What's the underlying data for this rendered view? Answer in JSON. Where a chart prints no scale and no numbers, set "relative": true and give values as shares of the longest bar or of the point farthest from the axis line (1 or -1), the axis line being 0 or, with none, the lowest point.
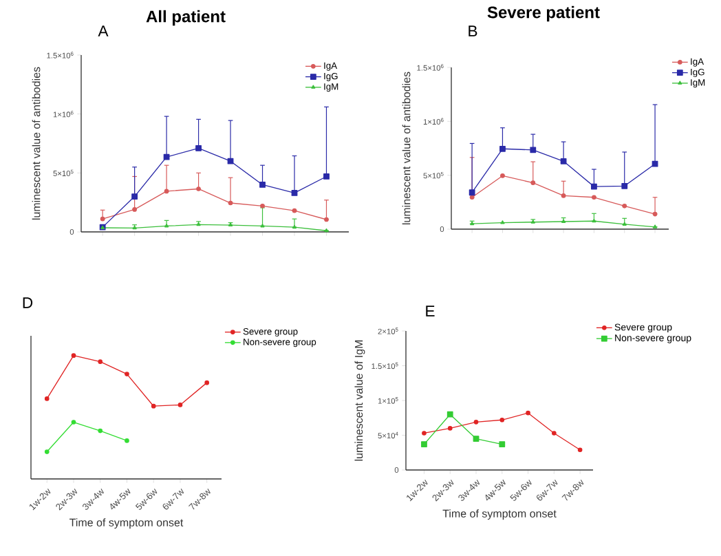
{
  "chart_data": [
    {
      "type": "line",
      "title": "All patient",
      "annotations": [
        "A"
      ],
      "ylabel": "luminescent value of antibodies",
      "categories": [
        null,
        null,
        null,
        null,
        null,
        null,
        null,
        null
      ],
      "ylim": [
        0,
        1500000
      ],
      "yticks": [
        0,
        {
          "value": 500000,
          "label": "5×10$^{5}$"
        },
        {
          "value": 1000000,
          "label": "1×10$^{6}$"
        },
        {
          "value": 1500000,
          "label": "1.5×10$^{6}$"
        }
      ],
      "legend": "top right",
      "series": [
        {
          "name": "IgA",
          "color": "#d75a5a",
          "marker": "circle",
          "values": [
            110000,
            190000,
            345000,
            365000,
            245000,
            220000,
            180000,
            105000
          ],
          "errors": [
            [
              110000,
              185000
            ],
            [
              190000,
              470000
            ],
            [
              345000,
              565000
            ],
            [
              365000,
              500000
            ],
            [
              245000,
              460000
            ],
            null,
            null,
            [
              105000,
              270000
            ]
          ]
        },
        {
          "name": "IgG",
          "color": "#2a2aa8",
          "marker": "square",
          "values": [
            40000,
            300000,
            635000,
            710000,
            600000,
            400000,
            330000,
            470000
          ],
          "errors": [
            null,
            [
              300000,
              550000
            ],
            [
              635000,
              980000
            ],
            [
              710000,
              955000
            ],
            [
              600000,
              945000
            ],
            [
              400000,
              565000
            ],
            [
              330000,
              645000
            ],
            [
              470000,
              1060000
            ]
          ]
        },
        {
          "name": "IgM",
          "color": "#3cbf3c",
          "marker": "triangle",
          "values": [
            35000,
            33000,
            50000,
            62000,
            58000,
            50000,
            40000,
            10000
          ],
          "errors": [
            null,
            [
              33000,
              60000
            ],
            [
              50000,
              97000
            ],
            [
              62000,
              88000
            ],
            [
              58000,
              78000
            ],
            [
              50000,
              205000
            ],
            [
              40000,
              110000
            ],
            null
          ]
        }
      ]
    },
    {
      "type": "line",
      "title": "Severe patient",
      "annotations": [
        "B"
      ],
      "ylabel": "luminescent value of antibodies",
      "categories": [
        null,
        null,
        null,
        null,
        null,
        null,
        null
      ],
      "ylim": [
        0,
        1500000
      ],
      "yticks": [
        0,
        {
          "value": 500000,
          "label": "5×10$^{5}$"
        },
        {
          "value": 1000000,
          "label": "1×10$^{6}$"
        },
        {
          "value": 1500000,
          "label": "1.5×10$^{6}$"
        }
      ],
      "legend": "right",
      "series": [
        {
          "name": "IgA",
          "color": "#d75a5a",
          "marker": "circle",
          "values": [
            295000,
            495000,
            430000,
            310000,
            295000,
            215000,
            140000
          ],
          "errors": [
            [
              295000,
              665000
            ],
            null,
            [
              430000,
              625000
            ],
            [
              310000,
              445000
            ],
            null,
            null,
            [
              140000,
              295000
            ]
          ]
        },
        {
          "name": "IgG",
          "color": "#2a2aa8",
          "marker": "square",
          "values": [
            340000,
            745000,
            735000,
            630000,
            395000,
            400000,
            605000
          ],
          "errors": [
            [
              340000,
              795000
            ],
            [
              745000,
              940000
            ],
            [
              735000,
              880000
            ],
            [
              630000,
              810000
            ],
            [
              395000,
              555000
            ],
            [
              400000,
              715000
            ],
            [
              605000,
              1155000
            ]
          ]
        },
        {
          "name": "IgM",
          "color": "#3cbf3c",
          "marker": "triangle",
          "values": [
            50000,
            60000,
            65000,
            70000,
            75000,
            45000,
            20000
          ],
          "errors": [
            [
              50000,
              75000
            ],
            null,
            [
              65000,
              90000
            ],
            [
              70000,
              105000
            ],
            [
              75000,
              145000
            ],
            [
              45000,
              100000
            ],
            null
          ]
        }
      ]
    },
    {
      "type": "line",
      "annotations": [
        "D"
      ],
      "xlabel": "Time of symptom onset",
      "categories": [
        "1w-2w",
        "2w-3w",
        "3w-4w",
        "4w-5w",
        "5w-6w",
        "6w-7w",
        "7w-8w"
      ],
      "relative": true,
      "legend": "right",
      "series": [
        {
          "name": "Severe group",
          "color": "#e02424",
          "marker": "circle",
          "values": [
            0.65,
            1,
            0.95,
            0.85,
            0.59,
            0.6,
            0.78
          ]
        },
        {
          "name": "Non-severe group",
          "color": "#33dd33",
          "marker": "circle",
          "values": [
            0.22,
            0.46,
            0.39,
            0.31,
            null,
            null,
            null
          ]
        }
      ]
    },
    {
      "type": "line",
      "annotations": [
        "E"
      ],
      "xlabel": "Time of symptom onset",
      "ylabel": "luminescent value of IgM",
      "categories": [
        "1w-2w",
        "2w-3w",
        "3w-4w",
        "4w-5w",
        "5w-6w",
        "6w-7w",
        "7w-8w"
      ],
      "ylim": [
        0,
        200000
      ],
      "yticks": [
        0,
        {
          "value": 50000,
          "label": "5×10$^{4}$"
        },
        {
          "value": 100000,
          "label": "1×10$^{5}$"
        },
        {
          "value": 150000,
          "label": "1.5×10$^{5}$"
        },
        {
          "value": 200000,
          "label": "2×10$^{5}$"
        }
      ],
      "legend": "right",
      "series": [
        {
          "name": "Severe group",
          "color": "#e02424",
          "marker": "circle",
          "values": [
            53000,
            60000,
            69000,
            72000,
            82000,
            53000,
            29000
          ]
        },
        {
          "name": "Non-severe group",
          "color": "#33cc33",
          "marker": "square",
          "values": [
            37000,
            80000,
            45000,
            37000,
            null,
            null,
            null
          ]
        }
      ]
    }
  ]
}
